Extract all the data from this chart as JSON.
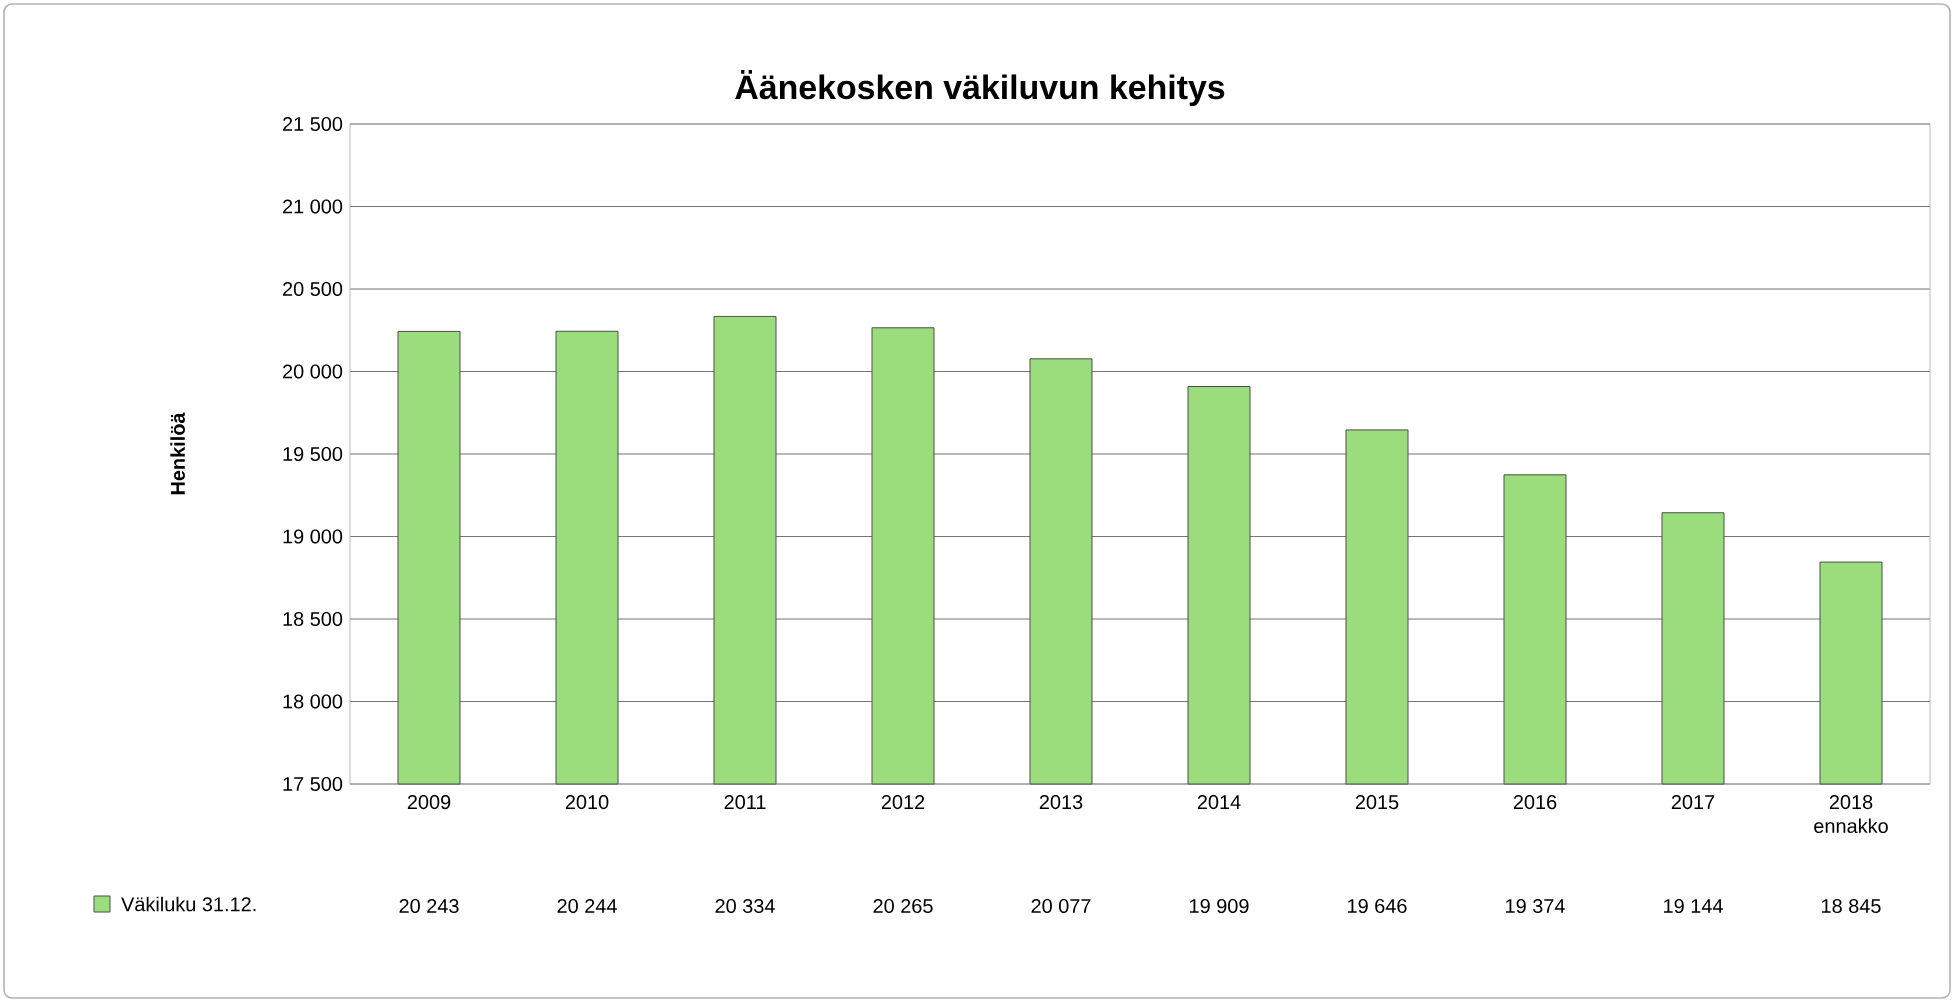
{
  "chart_data": {
    "type": "bar",
    "title": "Äänekosken väkiluvun kehitys",
    "ylabel": "Henkilöä",
    "categories": [
      "2009",
      "2010",
      "2011",
      "2012",
      "2013",
      "2014",
      "2015",
      "2016",
      "2017",
      "2018 ennakko"
    ],
    "series": [
      {
        "name": "Väkiluku 31.12.",
        "color": "#9bdd7c",
        "values": [
          20243,
          20244,
          20334,
          20265,
          20077,
          19909,
          19646,
          19374,
          19144,
          18845
        ],
        "value_labels": [
          "20 243",
          "20 244",
          "20 334",
          "20 265",
          "20 077",
          "19 909",
          "19 646",
          "19 374",
          "19 144",
          "18 845"
        ]
      }
    ],
    "ylim": [
      17500,
      21500
    ],
    "yticks": [
      {
        "value": 17500,
        "label": "17 500"
      },
      {
        "value": 18000,
        "label": "18 000"
      },
      {
        "value": 18500,
        "label": "18 500"
      },
      {
        "value": 19000,
        "label": "19 000"
      },
      {
        "value": 19500,
        "label": "19 500"
      },
      {
        "value": 20000,
        "label": "20 000"
      },
      {
        "value": 20500,
        "label": "20 500"
      },
      {
        "value": 21000,
        "label": "21 000"
      },
      {
        "value": 21500,
        "label": "21 500"
      }
    ],
    "grid": "y",
    "legend": "bottom"
  }
}
